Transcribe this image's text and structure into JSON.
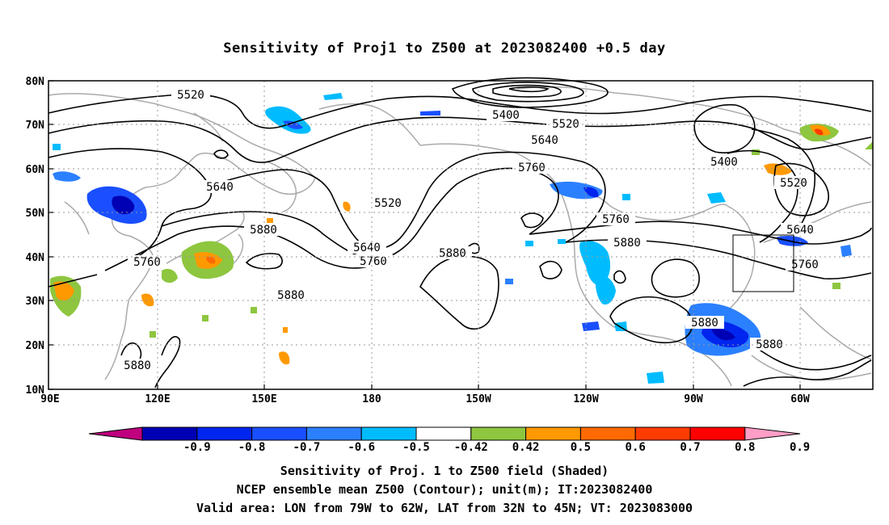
{
  "title": "Sensitivity of Proj1 to Z500 at 2023082400 +0.5 day",
  "map": {
    "lon_range": [
      "90E",
      "50W"
    ],
    "lat_range": [
      "10N",
      "80N"
    ],
    "lat_ticks": [
      "80N",
      "70N",
      "60N",
      "50N",
      "40N",
      "30N",
      "20N",
      "10N"
    ],
    "lon_ticks": [
      "90E",
      "120E",
      "150E",
      "180",
      "150W",
      "120W",
      "90W",
      "60W"
    ],
    "grid": "dotted",
    "contour_labels": [
      "5520",
      "5400",
      "5520",
      "5640",
      "5760",
      "5400",
      "5520",
      "5640",
      "5520",
      "5640",
      "5760",
      "5880",
      "5760",
      "5880",
      "5880",
      "5640",
      "5760",
      "5880",
      "5760",
      "5880",
      "5880",
      "5880"
    ],
    "valid_area_box": {
      "lon": [
        "79W",
        "62W"
      ],
      "lat": [
        "32N",
        "45N"
      ]
    }
  },
  "colorbar": {
    "labels": [
      "-0.9",
      "-0.8",
      "-0.7",
      "-0.6",
      "-0.5",
      "-0.42",
      "0.42",
      "0.5",
      "0.6",
      "0.7",
      "0.8",
      "0.9"
    ],
    "colors": [
      "#c0007f",
      "#0000b4",
      "#0025ee",
      "#1a4fff",
      "#2b80ff",
      "#00bcff",
      "#ffffff",
      "#8ec63f",
      "#ff9900",
      "#ff6a00",
      "#ff3c00",
      "#ff0000",
      "#ff9ec6"
    ]
  },
  "captions": [
    "Sensitivity of Proj. 1 to Z500 field (Shaded)",
    "NCEP ensemble mean Z500 (Contour); unit(m); IT:2023082400",
    "Valid area: LON from 79W to 62W, LAT from 32N to 45N; VT: 2023083000"
  ]
}
